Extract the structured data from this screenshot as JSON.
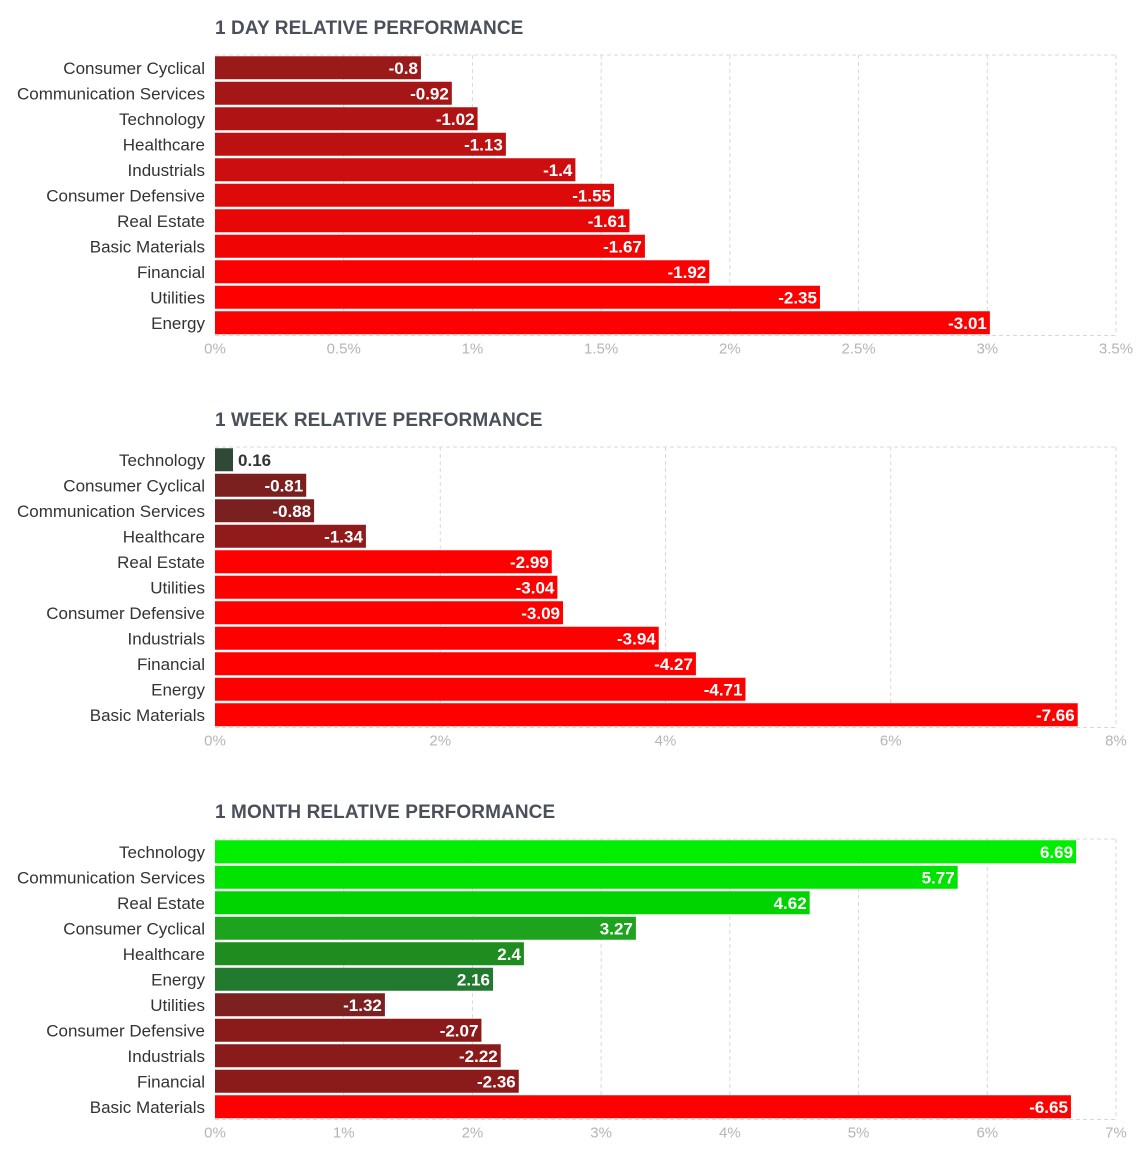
{
  "chart_data": [
    {
      "type": "bar",
      "orientation": "horizontal",
      "title": "1 DAY RELATIVE PERFORMANCE",
      "categories": [
        "Consumer Cyclical",
        "Communication Services",
        "Technology",
        "Healthcare",
        "Industrials",
        "Consumer Defensive",
        "Real Estate",
        "Basic Materials",
        "Financial",
        "Utilities",
        "Energy"
      ],
      "values": [
        -0.8,
        -0.92,
        -1.02,
        -1.13,
        -1.4,
        -1.55,
        -1.61,
        -1.67,
        -1.92,
        -2.35,
        -3.01
      ],
      "value_labels": [
        "-0.8",
        "-0.92",
        "-1.02",
        "-1.13",
        "-1.4",
        "-1.55",
        "-1.61",
        "-1.67",
        "-1.92",
        "-2.35",
        "-3.01"
      ],
      "bar_colors": [
        "#9a1a1a",
        "#a51616",
        "#b01313",
        "#bc1111",
        "#cc0e0e",
        "#dd0a0a",
        "#e80707",
        "#f00404",
        "#fb0101",
        "#ff0000",
        "#ff0000"
      ],
      "xlim": [
        0,
        3.5
      ],
      "xticks": [
        "0%",
        "0.5%",
        "1%",
        "1.5%",
        "2%",
        "2.5%",
        "3%",
        "3.5%"
      ],
      "xlabel": "",
      "ylabel": "",
      "grid": true
    },
    {
      "type": "bar",
      "orientation": "horizontal",
      "title": "1 WEEK RELATIVE PERFORMANCE",
      "categories": [
        "Technology",
        "Consumer Cyclical",
        "Communication Services",
        "Healthcare",
        "Real Estate",
        "Utilities",
        "Consumer Defensive",
        "Industrials",
        "Financial",
        "Energy",
        "Basic Materials"
      ],
      "values": [
        0.16,
        -0.81,
        -0.88,
        -1.34,
        -2.99,
        -3.04,
        -3.09,
        -3.94,
        -4.27,
        -4.71,
        -7.66
      ],
      "value_labels": [
        "0.16",
        "-0.81",
        "-0.88",
        "-1.34",
        "-2.99",
        "-3.04",
        "-3.09",
        "-3.94",
        "-4.27",
        "-4.71",
        "-7.66"
      ],
      "bar_colors": [
        "#2e4a36",
        "#7c1f1f",
        "#7a2020",
        "#911b1b",
        "#ff0000",
        "#ff0000",
        "#ff0000",
        "#ff0000",
        "#ff0000",
        "#ff0000",
        "#ff0000"
      ],
      "xlim": [
        0,
        8
      ],
      "xticks": [
        "0%",
        "2%",
        "4%",
        "6%",
        "8%"
      ],
      "xlabel": "",
      "ylabel": "",
      "grid": true
    },
    {
      "type": "bar",
      "orientation": "horizontal",
      "title": "1 MONTH RELATIVE PERFORMANCE",
      "categories": [
        "Technology",
        "Communication Services",
        "Real Estate",
        "Consumer Cyclical",
        "Healthcare",
        "Energy",
        "Utilities",
        "Consumer Defensive",
        "Industrials",
        "Financial",
        "Basic Materials"
      ],
      "values": [
        6.69,
        5.77,
        4.62,
        3.27,
        2.4,
        2.16,
        -1.32,
        -2.07,
        -2.22,
        -2.36,
        -6.65
      ],
      "value_labels": [
        "6.69",
        "5.77",
        "4.62",
        "3.27",
        "2.4",
        "2.16",
        "-1.32",
        "-2.07",
        "-2.22",
        "-2.36",
        "-6.65"
      ],
      "bar_colors": [
        "#00ee00",
        "#00e200",
        "#00d400",
        "#1ea31e",
        "#1e8c1e",
        "#227a2e",
        "#7c2020",
        "#8b1a1a",
        "#8b1a1a",
        "#8b1a1a",
        "#ff0000"
      ],
      "xlim": [
        0,
        7
      ],
      "xticks": [
        "0%",
        "1%",
        "2%",
        "3%",
        "4%",
        "5%",
        "6%",
        "7%"
      ],
      "xlabel": "",
      "ylabel": "",
      "grid": true
    }
  ]
}
